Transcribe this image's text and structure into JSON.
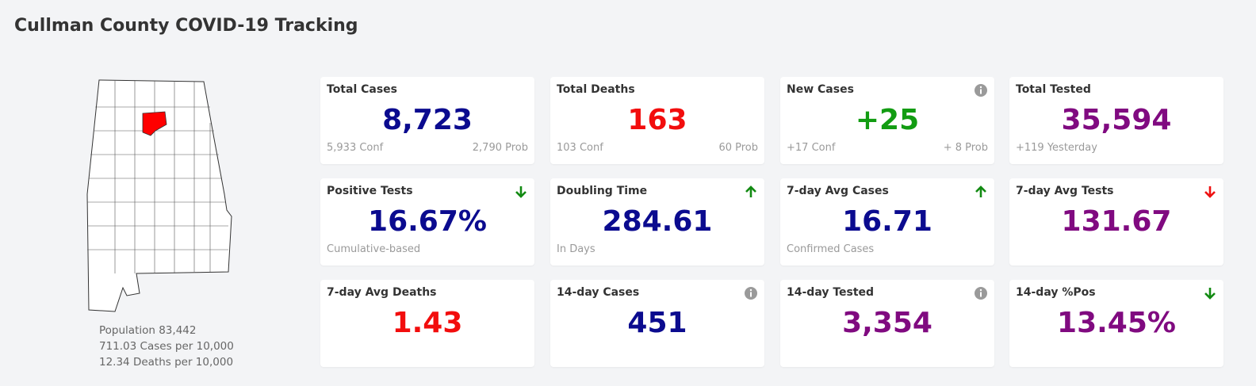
{
  "header": {
    "title": "Cullman County COVID-19 Tracking"
  },
  "county_info": [
    "Population 83,442",
    "711.03 Cases per 10,000",
    "12.34 Deaths per 10,000"
  ],
  "cards": [
    {
      "label": "Total Cases",
      "value": "8,723",
      "value_color": "#0b0b8f",
      "left": "5,933 Conf",
      "right": "2,790 Prob"
    },
    {
      "label": "Total Deaths",
      "value": "163",
      "value_color": "#f20d0d",
      "left": "103 Conf",
      "right": "60 Prob"
    },
    {
      "label": "New Cases",
      "value": "+25",
      "value_color": "#129c12",
      "left": "+17 Conf",
      "right": "+ 8 Prob",
      "indicator": "info"
    },
    {
      "label": "Total Tested",
      "value": "35,594",
      "value_color": "#800a80",
      "left": "+119 Yesterday"
    },
    {
      "label": "Positive Tests",
      "value": "16.67%",
      "value_color": "#0b0b8f",
      "left": "Cumulative-based",
      "indicator": "down",
      "indicator_color": "#128a12"
    },
    {
      "label": "Doubling Time",
      "value": "284.61",
      "value_color": "#0b0b8f",
      "left": "In Days",
      "indicator": "up",
      "indicator_color": "#128a12"
    },
    {
      "label": "7-day Avg Cases",
      "value": "16.71",
      "value_color": "#0b0b8f",
      "left": "Confirmed Cases",
      "indicator": "up",
      "indicator_color": "#128a12"
    },
    {
      "label": "7-day Avg Tests",
      "value": "131.67",
      "value_color": "#800a80",
      "indicator": "down",
      "indicator_color": "#ee1111"
    },
    {
      "label": "7-day Avg Deaths",
      "value": "1.43",
      "value_color": "#f20d0d"
    },
    {
      "label": "14-day Cases",
      "value": "451",
      "value_color": "#0b0b8f",
      "indicator": "info"
    },
    {
      "label": "14-day Tested",
      "value": "3,354",
      "value_color": "#800a80",
      "indicator": "info"
    },
    {
      "label": "14-day %Pos",
      "value": "13.45%",
      "value_color": "#800a80",
      "indicator": "down",
      "indicator_color": "#128a12"
    }
  ]
}
